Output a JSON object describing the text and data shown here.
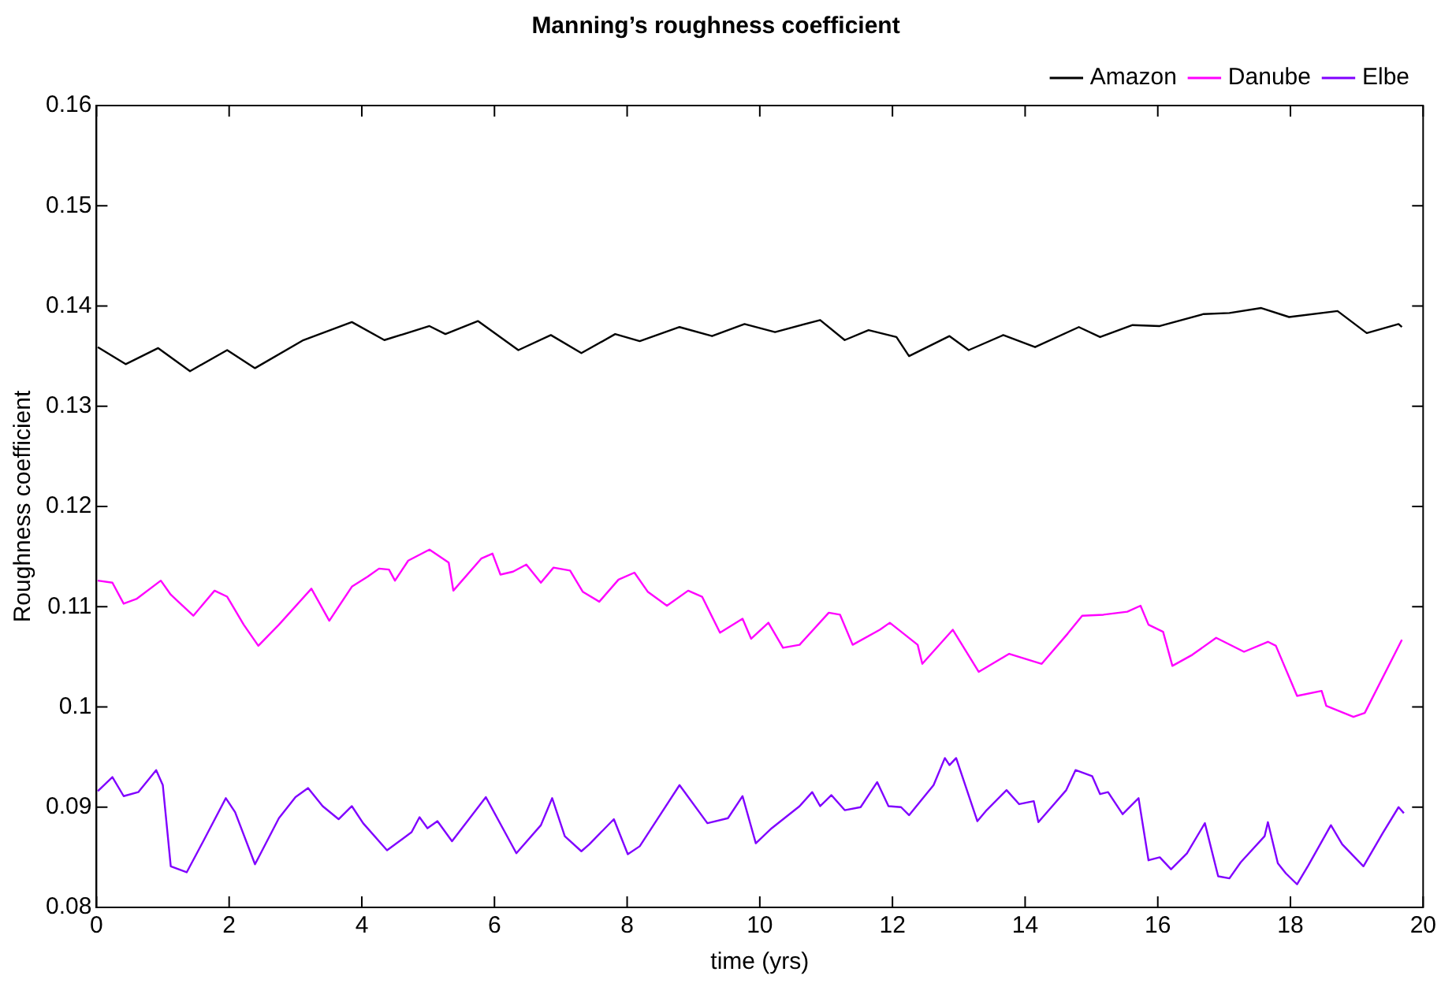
{
  "chart_data": {
    "type": "line",
    "title": "Manning’s roughness coefficient",
    "xlabel": "time (yrs)",
    "ylabel": "Roughness coefficient",
    "xlim": [
      0,
      20
    ],
    "xticks": [
      0,
      2,
      4,
      6,
      8,
      10,
      12,
      14,
      16,
      18,
      20
    ],
    "ylim": [
      0.08,
      0.16
    ],
    "yticks": [
      0.08,
      0.09,
      0.1,
      0.11,
      0.12,
      0.13,
      0.14,
      0.15,
      0.16
    ],
    "grid": false,
    "legend": "top right",
    "marker": "none",
    "line_style": "solid",
    "series": [
      {
        "name": "Amazon",
        "color": "#000000",
        "x": [
          0.02,
          0.44,
          0.93,
          1.41,
          1.97,
          2.39,
          3.12,
          3.85,
          4.34,
          5.02,
          5.26,
          5.75,
          6.36,
          6.85,
          7.31,
          7.82,
          8.19,
          8.79,
          9.28,
          9.77,
          10.23,
          10.91,
          11.28,
          11.64,
          12.06,
          12.25,
          12.86,
          13.15,
          13.67,
          14.15,
          14.81,
          15.13,
          15.62,
          16.03,
          16.69,
          17.08,
          17.56,
          17.98,
          18.71,
          19.15,
          19.63,
          19.68
        ],
        "values": [
          0.1359,
          0.1342,
          0.1358,
          0.1335,
          0.1356,
          0.1338,
          0.1366,
          0.1384,
          0.1366,
          0.138,
          0.1372,
          0.1385,
          0.1356,
          0.1371,
          0.1353,
          0.1372,
          0.1365,
          0.1379,
          0.137,
          0.1382,
          0.1374,
          0.1386,
          0.1366,
          0.1376,
          0.1369,
          0.135,
          0.137,
          0.1356,
          0.1371,
          0.1359,
          0.1379,
          0.1369,
          0.1381,
          0.138,
          0.1392,
          0.1393,
          0.1398,
          0.1389,
          0.1395,
          0.1373,
          0.1382,
          0.1379
        ]
      },
      {
        "name": "Danube",
        "color": "#ff00ff",
        "x": [
          0.02,
          0.24,
          0.41,
          0.61,
          0.97,
          1.12,
          1.46,
          1.78,
          1.97,
          2.22,
          2.44,
          2.75,
          3.24,
          3.51,
          3.85,
          4.09,
          4.26,
          4.41,
          4.5,
          4.7,
          5.02,
          5.31,
          5.38,
          5.8,
          5.97,
          6.09,
          6.28,
          6.48,
          6.7,
          6.89,
          7.14,
          7.33,
          7.58,
          7.87,
          8.11,
          8.31,
          8.6,
          8.92,
          9.13,
          9.4,
          9.74,
          9.87,
          10.13,
          10.35,
          10.6,
          11.04,
          11.21,
          11.4,
          11.81,
          11.96,
          12.38,
          12.45,
          12.91,
          13.3,
          13.76,
          14.25,
          14.64,
          14.86,
          15.18,
          15.54,
          15.74,
          15.86,
          16.08,
          16.22,
          16.52,
          16.88,
          17.3,
          17.66,
          17.78,
          18.1,
          18.47,
          18.54,
          18.95,
          19.12,
          19.68
        ],
        "values": [
          0.1126,
          0.1124,
          0.1103,
          0.1108,
          0.1126,
          0.1112,
          0.1091,
          0.1116,
          0.111,
          0.1082,
          0.1061,
          0.1082,
          0.1118,
          0.1086,
          0.112,
          0.113,
          0.1138,
          0.1137,
          0.1126,
          0.1146,
          0.1157,
          0.1144,
          0.1116,
          0.1148,
          0.1153,
          0.1132,
          0.1135,
          0.1142,
          0.1124,
          0.1139,
          0.1136,
          0.1115,
          0.1105,
          0.1127,
          0.1134,
          0.1115,
          0.1101,
          0.1116,
          0.111,
          0.1074,
          0.1088,
          0.1068,
          0.1084,
          0.1059,
          0.1062,
          0.1094,
          0.1092,
          0.1062,
          0.1077,
          0.1084,
          0.1062,
          0.1043,
          0.1077,
          0.1035,
          0.1053,
          0.1043,
          0.1073,
          0.1091,
          0.1092,
          0.1095,
          0.1101,
          0.1082,
          0.1075,
          0.1041,
          0.1052,
          0.1069,
          0.1055,
          0.1065,
          0.1061,
          0.1011,
          0.1016,
          0.1001,
          0.099,
          0.0994,
          0.1067
        ]
      },
      {
        "name": "Elbe",
        "color": "#8000ff",
        "x": [
          0.02,
          0.24,
          0.41,
          0.63,
          0.9,
          1.0,
          1.12,
          1.36,
          1.61,
          1.95,
          2.09,
          2.39,
          2.75,
          3.0,
          3.19,
          3.41,
          3.65,
          3.85,
          4.02,
          4.38,
          4.75,
          4.87,
          4.99,
          5.14,
          5.36,
          5.87,
          6.33,
          6.7,
          6.87,
          7.06,
          7.31,
          7.43,
          7.8,
          8.01,
          8.19,
          8.79,
          9.21,
          9.52,
          9.74,
          9.94,
          10.18,
          10.6,
          10.79,
          10.91,
          11.08,
          11.28,
          11.52,
          11.77,
          11.94,
          12.13,
          12.25,
          12.62,
          12.79,
          12.86,
          12.96,
          13.28,
          13.42,
          13.72,
          13.91,
          14.13,
          14.2,
          14.62,
          14.76,
          15.01,
          15.13,
          15.25,
          15.47,
          15.71,
          15.86,
          16.03,
          16.2,
          16.44,
          16.71,
          16.91,
          17.08,
          17.25,
          17.61,
          17.66,
          17.81,
          17.93,
          18.1,
          18.27,
          18.61,
          18.78,
          19.1,
          19.39,
          19.63,
          19.71
        ],
        "values": [
          0.0916,
          0.093,
          0.0911,
          0.0915,
          0.0937,
          0.0922,
          0.0841,
          0.0835,
          0.0866,
          0.0909,
          0.0895,
          0.0843,
          0.0889,
          0.091,
          0.0919,
          0.0901,
          0.0888,
          0.0901,
          0.0884,
          0.0857,
          0.0875,
          0.089,
          0.0879,
          0.0886,
          0.0866,
          0.091,
          0.0854,
          0.0882,
          0.0909,
          0.0871,
          0.0856,
          0.0863,
          0.0888,
          0.0853,
          0.0861,
          0.0922,
          0.0884,
          0.0889,
          0.0911,
          0.0864,
          0.0879,
          0.0901,
          0.0915,
          0.0901,
          0.0912,
          0.0897,
          0.09,
          0.0925,
          0.0901,
          0.09,
          0.0892,
          0.0922,
          0.0949,
          0.0942,
          0.0949,
          0.0886,
          0.0897,
          0.0917,
          0.0903,
          0.0906,
          0.0885,
          0.0917,
          0.0937,
          0.0931,
          0.0913,
          0.0915,
          0.0893,
          0.0909,
          0.0847,
          0.085,
          0.0838,
          0.0854,
          0.0884,
          0.0831,
          0.0829,
          0.0845,
          0.0871,
          0.0885,
          0.0844,
          0.0834,
          0.0823,
          0.0842,
          0.0882,
          0.0863,
          0.0841,
          0.0874,
          0.09,
          0.0894
        ]
      }
    ]
  }
}
